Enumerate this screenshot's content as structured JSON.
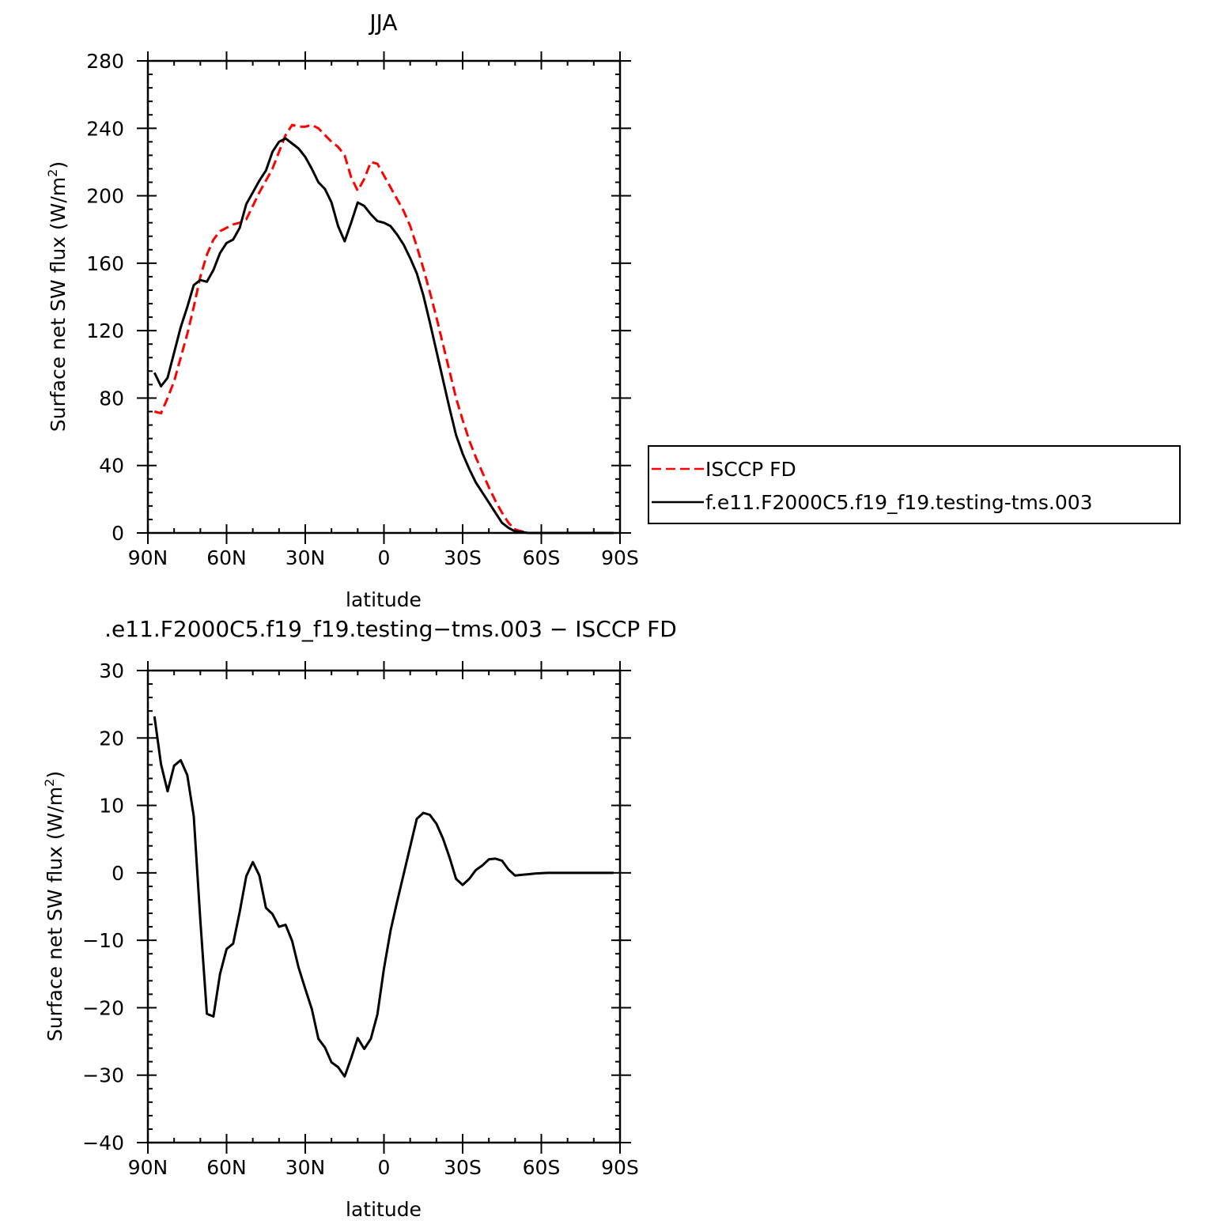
{
  "chart_data": [
    {
      "type": "line",
      "title": "JJA",
      "xlabel": "latitude",
      "ylabel": "Surface net SW flux (W/m²)",
      "ylabel_main": "Surface net SW flux (W/m",
      "ylabel_sup": "2",
      "ylabel_end": ")",
      "xlim": [
        90,
        -90
      ],
      "ylim": [
        0,
        280
      ],
      "xticks": [
        90,
        60,
        30,
        0,
        -30,
        -60,
        -90
      ],
      "xtick_labels": [
        "90N",
        "60N",
        "30N",
        "0",
        "30S",
        "60S",
        "90S"
      ],
      "yticks": [
        0,
        40,
        80,
        120,
        160,
        200,
        240,
        280
      ],
      "ytick_labels": [
        "0",
        "40",
        "80",
        "120",
        "160",
        "200",
        "240",
        "280"
      ],
      "legend_position": "right",
      "series": [
        {
          "name": "ISCCP FD",
          "color": "#ff0000",
          "dash": "dashed",
          "x": [
            87.5,
            85,
            82.5,
            80,
            77.5,
            75,
            72.5,
            70,
            67.5,
            65,
            62.5,
            60,
            57.5,
            55,
            52.5,
            50,
            47.5,
            45,
            42.5,
            40,
            37.5,
            35,
            32.5,
            30,
            27.5,
            25,
            22.5,
            20,
            17.5,
            15,
            12.5,
            10,
            7.5,
            5,
            2.5,
            0,
            -2.5,
            -5,
            -7.5,
            -10,
            -12.5,
            -15,
            -17.5,
            -20,
            -22.5,
            -25,
            -27.5,
            -30,
            -32.5,
            -35,
            -37.5,
            -40,
            -42.5,
            -45,
            -47.5,
            -50,
            -52.5,
            -55,
            -57.5,
            -60,
            -62.5,
            -65,
            -67.5,
            -70,
            -72.5,
            -75,
            -77.5,
            -80,
            -82.5,
            -85,
            -87.5
          ],
          "y": [
            72,
            71,
            80,
            90,
            104,
            118,
            134,
            152,
            165,
            174,
            179,
            181,
            183,
            184,
            186,
            194,
            202,
            209,
            216,
            226,
            236,
            242,
            241,
            241,
            242,
            240,
            236,
            232,
            229,
            224,
            211,
            203,
            210,
            220,
            219,
            212,
            205,
            198,
            191,
            182,
            170,
            157,
            143,
            128,
            112,
            96,
            80,
            67,
            55,
            45,
            36,
            27,
            19,
            12,
            6,
            2,
            1,
            0,
            0,
            0,
            0,
            0,
            0,
            0,
            0,
            0,
            0,
            0,
            0,
            0,
            0
          ]
        },
        {
          "name": "f.e11.F2000C5.f19_f19.testing-tms.003",
          "color": "#000000",
          "dash": "solid",
          "x": [
            87.5,
            85,
            82.5,
            80,
            77.5,
            75,
            72.5,
            70,
            67.5,
            65,
            62.5,
            60,
            57.5,
            55,
            52.5,
            50,
            47.5,
            45,
            42.5,
            40,
            37.5,
            35,
            32.5,
            30,
            27.5,
            25,
            22.5,
            20,
            17.5,
            15,
            12.5,
            10,
            7.5,
            5,
            2.5,
            0,
            -2.5,
            -5,
            -7.5,
            -10,
            -12.5,
            -15,
            -17.5,
            -20,
            -22.5,
            -25,
            -27.5,
            -30,
            -32.5,
            -35,
            -37.5,
            -40,
            -42.5,
            -45,
            -47.5,
            -50,
            -52.5,
            -55,
            -57.5,
            -60,
            -62.5,
            -65,
            -67.5,
            -70,
            -72.5,
            -75,
            -77.5,
            -80,
            -82.5,
            -85,
            -87.5
          ],
          "y": [
            95,
            87,
            92,
            107,
            122,
            134,
            147,
            150,
            149,
            156,
            166,
            172,
            174,
            181,
            195,
            202,
            209,
            215,
            226,
            232,
            234,
            231,
            228,
            223,
            216,
            208,
            204,
            196,
            182,
            173,
            184,
            196,
            194,
            189,
            185,
            184,
            182,
            177,
            171,
            163,
            154,
            141,
            125,
            108,
            91,
            74,
            58,
            47,
            38,
            30,
            24,
            18,
            12,
            6,
            3,
            1,
            0.5,
            0,
            0,
            0,
            0,
            0,
            0,
            0,
            0,
            0,
            0,
            0,
            0,
            0,
            0
          ]
        }
      ]
    },
    {
      "type": "line",
      "title": ".e11.F2000C5.f19_f19.testing−tms.003 − ISCCP FD",
      "xlabel": "latitude",
      "ylabel": "Surface net SW flux (W/m²)",
      "ylabel_main": "Surface net SW flux (W/m",
      "ylabel_sup": "2",
      "ylabel_end": ")",
      "xlim": [
        90,
        -90
      ],
      "ylim": [
        -40,
        30
      ],
      "xticks": [
        90,
        60,
        30,
        0,
        -30,
        -60,
        -90
      ],
      "xtick_labels": [
        "90N",
        "60N",
        "30N",
        "0",
        "30S",
        "60S",
        "90S"
      ],
      "yticks": [
        -40,
        -30,
        -20,
        -10,
        0,
        10,
        20,
        30
      ],
      "ytick_labels": [
        "−40",
        "−30",
        "−20",
        "−10",
        "0",
        "10",
        "20",
        "30"
      ],
      "series": [
        {
          "color": "#000000",
          "dash": "solid",
          "x": [
            87.5,
            85,
            82.5,
            80,
            77.5,
            75,
            72.5,
            70,
            67.5,
            65,
            62.5,
            60,
            57.5,
            55,
            52.5,
            50,
            47.5,
            45,
            42.5,
            40,
            37.5,
            35,
            32.5,
            30,
            27.5,
            25,
            22.5,
            20,
            17.5,
            15,
            12.5,
            10,
            7.5,
            5,
            2.5,
            0,
            -2.5,
            -5,
            -7.5,
            -10,
            -12.5,
            -15,
            -17.5,
            -20,
            -22.5,
            -25,
            -27.5,
            -30,
            -32.5,
            -35,
            -37.5,
            -40,
            -42.5,
            -45,
            -47.5,
            -50,
            -52.5,
            -55,
            -57.5,
            -60,
            -62.5,
            -65,
            -67.5,
            -70,
            -72.5,
            -75,
            -77.5,
            -80,
            -82.5,
            -85,
            -87.5
          ],
          "y": [
            23.2,
            16.1,
            12.1,
            15.9,
            16.7,
            14.5,
            8.4,
            -7,
            -20.9,
            -21.3,
            -15,
            -11.3,
            -10.5,
            -5.8,
            -0.5,
            1.6,
            -0.4,
            -5.2,
            -6.1,
            -8,
            -7.7,
            -10.1,
            -14.1,
            -17.2,
            -20.2,
            -24.6,
            -25.9,
            -28.1,
            -28.8,
            -30.2,
            -27.5,
            -24.5,
            -26.1,
            -24.6,
            -21,
            -14.2,
            -8.6,
            -4.3,
            -0.2,
            3.9,
            8,
            8.9,
            8.6,
            7.3,
            5.1,
            2.3,
            -0.9,
            -1.8,
            -0.9,
            0.4,
            1.1,
            2,
            2.1,
            1.8,
            0.5,
            -0.4,
            -0.3,
            -0.2,
            -0.1,
            -0.05,
            0,
            0,
            0,
            0,
            0,
            0,
            0,
            0,
            0,
            0,
            0
          ]
        }
      ]
    }
  ]
}
